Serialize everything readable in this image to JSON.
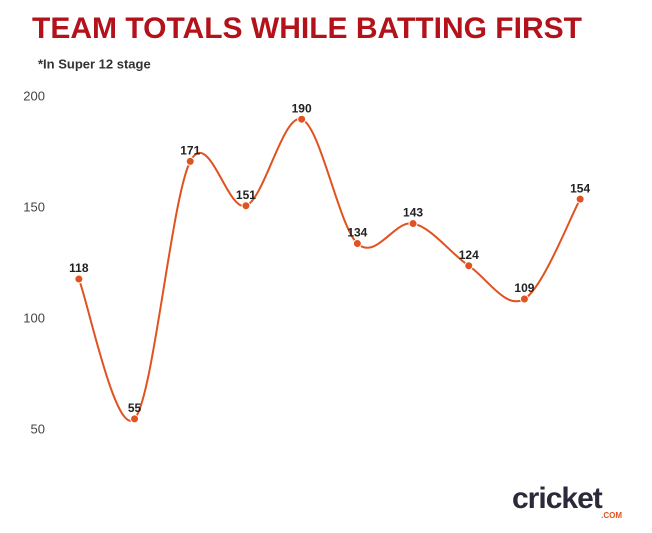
{
  "chart_data": {
    "type": "line",
    "title": "TEAM TOTALS WHILE BATTING FIRST",
    "subtitle": "*In Super 12 stage",
    "categories": [
      null,
      null,
      null,
      null,
      null,
      null,
      null,
      null,
      null,
      null
    ],
    "values": [
      118,
      55,
      171,
      151,
      190,
      134,
      143,
      124,
      109,
      154
    ],
    "color": "#e0521f",
    "ylim": [
      50,
      200
    ],
    "yticks": [
      50,
      100,
      150,
      200
    ],
    "grid": false,
    "logo": "cricket",
    "logo_sub": ".COM"
  }
}
